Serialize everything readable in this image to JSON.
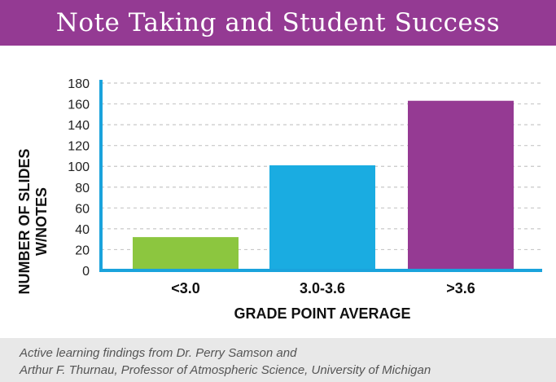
{
  "header": {
    "title": "Note Taking and Student Success"
  },
  "colors": {
    "header_bg": "#943a93",
    "axis": "#1aa3dc",
    "grid": "#c8c8c8"
  },
  "chart_data": {
    "type": "bar",
    "title": "Note Taking and Student Success",
    "categories": [
      "<3.0",
      "3.0-3.6",
      ">3.6"
    ],
    "values": [
      32,
      101,
      163
    ],
    "bar_colors": [
      "#8cc63f",
      "#1aace1",
      "#953a93"
    ],
    "xlabel": "GRADE POINT AVERAGE",
    "ylabel_lines": [
      "NUMBER OF SLIDES",
      "W/NOTES"
    ],
    "ylim": [
      0,
      180
    ],
    "yticks": [
      0,
      20,
      40,
      60,
      80,
      100,
      120,
      140,
      160,
      180
    ],
    "grid": true
  },
  "footer": {
    "caption_line1": "Active learning findings from Dr. Perry Samson and",
    "caption_line2": "Arthur F. Thurnau, Professor of Atmospheric Science, University of Michigan"
  }
}
